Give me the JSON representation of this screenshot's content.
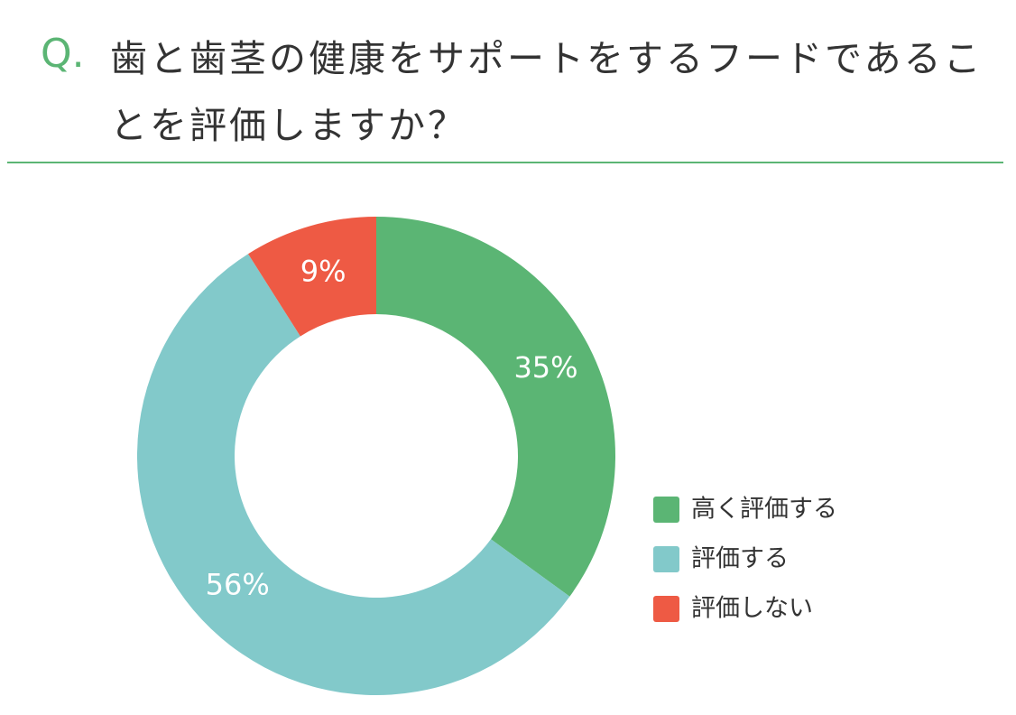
{
  "chart_data": {
    "type": "donut",
    "question_label": "Q.",
    "title": "歯と歯茎の健康をサポートをするフードであることを評価しますか？",
    "series": [
      {
        "name": "高く評価する",
        "color": "#5bb574",
        "value": 35,
        "value_label": "35%"
      },
      {
        "name": "評価する",
        "color": "#82c9ca",
        "value": 56,
        "value_label": "56%"
      },
      {
        "name": "評価しない",
        "color": "#ee5a44",
        "value": 9,
        "value_label": "9%"
      }
    ],
    "legend": "right"
  }
}
